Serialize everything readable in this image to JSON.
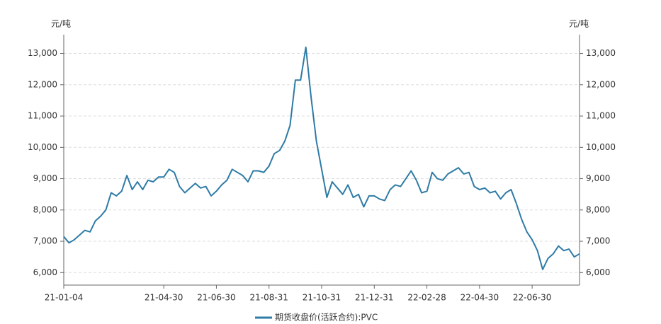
{
  "chart_data": {
    "type": "line",
    "y_unit": "元/吨",
    "categories": [
      "21-01-04",
      null,
      null,
      null,
      null,
      null,
      null,
      null,
      null,
      null,
      null,
      null,
      null,
      null,
      null,
      null,
      null,
      null,
      null,
      "21-04-30",
      null,
      null,
      null,
      null,
      null,
      null,
      null,
      null,
      null,
      "21-06-30",
      null,
      null,
      null,
      null,
      null,
      null,
      null,
      null,
      null,
      "21-08-31",
      null,
      null,
      null,
      null,
      null,
      null,
      null,
      null,
      null,
      "21-10-31",
      null,
      null,
      null,
      null,
      null,
      null,
      null,
      null,
      null,
      "21-12-31",
      null,
      null,
      null,
      null,
      null,
      null,
      null,
      null,
      null,
      "22-02-28",
      null,
      null,
      null,
      null,
      null,
      null,
      null,
      null,
      null,
      "22-04-30",
      null,
      null,
      null,
      null,
      null,
      null,
      null,
      null,
      null,
      "22-06-30",
      null,
      null,
      null,
      null,
      null,
      null,
      null,
      null,
      null
    ],
    "series": [
      {
        "name": "期货收盘价(活跃合约):PVC",
        "color": "#2e7ba6",
        "values": [
          7150,
          6950,
          7050,
          7200,
          7350,
          7300,
          7650,
          7800,
          8000,
          8550,
          8450,
          8600,
          9100,
          8650,
          8900,
          8650,
          8950,
          8900,
          9050,
          9050,
          9300,
          9200,
          8750,
          8550,
          8700,
          8850,
          8700,
          8750,
          8450,
          8600,
          8800,
          8950,
          9300,
          9200,
          9100,
          8900,
          9250,
          9250,
          9200,
          9400,
          9800,
          9900,
          10200,
          10700,
          12150,
          12150,
          13200,
          11600,
          10200,
          9300,
          8400,
          8900,
          8700,
          8500,
          8800,
          8400,
          8500,
          8100,
          8450,
          8450,
          8350,
          8300,
          8650,
          8800,
          8750,
          9000,
          9250,
          8950,
          8550,
          8600,
          9200,
          9000,
          8950,
          9150,
          9250,
          9350,
          9150,
          9200,
          8750,
          8650,
          8700,
          8550,
          8600,
          8350,
          8550,
          8650,
          8200,
          7700,
          7300,
          7050,
          6700,
          6100,
          6450,
          6600,
          6850,
          6700,
          6750,
          6500,
          6600
        ]
      }
    ],
    "ylim": [
      5600,
      13600
    ],
    "yticks": [
      {
        "value": 6000,
        "label": "6,000"
      },
      {
        "value": 7000,
        "label": "7,000"
      },
      {
        "value": 8000,
        "label": "8,000"
      },
      {
        "value": 9000,
        "label": "9,000"
      },
      {
        "value": 10000,
        "label": "10,000"
      },
      {
        "value": 11000,
        "label": "11,000"
      },
      {
        "value": 12000,
        "label": "12,000"
      },
      {
        "value": 13000,
        "label": "13,000"
      }
    ],
    "grid": true
  }
}
